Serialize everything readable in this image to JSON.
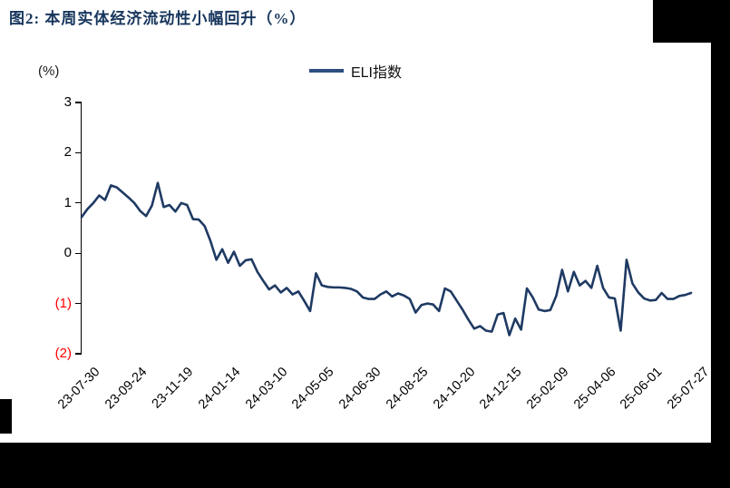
{
  "title": "图2:  本周实体经济流动性小幅回升（%）",
  "legend": {
    "series_label": "ELI指数"
  },
  "y_axis": {
    "unit": "(%)",
    "ticks": [
      {
        "label": "3",
        "color": "#000000"
      },
      {
        "label": "2",
        "color": "#000000"
      },
      {
        "label": "1",
        "color": "#000000"
      },
      {
        "label": "0",
        "color": "#000000"
      },
      {
        "label": "(1)",
        "color": "#FF0000"
      },
      {
        "label": "(2)",
        "color": "#FF0000"
      }
    ]
  },
  "x_axis": {
    "labels": [
      "23-07-30",
      "23-09-24",
      "23-11-19",
      "24-01-14",
      "24-03-10",
      "24-05-05",
      "24-06-30",
      "24-08-25",
      "24-10-20",
      "24-12-15",
      "25-02-09",
      "25-04-06",
      "25-06-01",
      "25-07-27"
    ]
  },
  "colors": {
    "title": "#17365D",
    "line": "#1F3A63",
    "legend_line": "#2E4E80",
    "negative_tick": "#FF0000"
  },
  "chart_data": {
    "type": "line",
    "title": "图2: 本周实体经济流动性小幅回升（%）",
    "ylabel": "(%)",
    "ylim": [
      -2,
      3
    ],
    "y_tick_values": [
      3,
      2,
      1,
      0,
      -1,
      -2
    ],
    "grid": false,
    "legend_position": "top-center",
    "x_note": "weekly observations, 23-07-30 to 25-07-27 (105 points); axis labels every 8 weeks",
    "x_tick_labels": [
      "23-07-30",
      "23-09-24",
      "23-11-19",
      "24-01-14",
      "24-03-10",
      "24-05-05",
      "24-06-30",
      "24-08-25",
      "24-10-20",
      "24-12-15",
      "25-02-09",
      "25-04-06",
      "25-06-01",
      "25-07-27"
    ],
    "series": [
      {
        "name": "ELI指数",
        "values": [
          0.72,
          0.88,
          1.0,
          1.15,
          1.06,
          1.35,
          1.31,
          1.21,
          1.11,
          1.0,
          0.84,
          0.74,
          0.95,
          1.4,
          0.92,
          0.96,
          0.83,
          1.0,
          0.96,
          0.68,
          0.67,
          0.54,
          0.24,
          -0.13,
          0.08,
          -0.19,
          0.03,
          -0.25,
          -0.14,
          -0.12,
          -0.37,
          -0.55,
          -0.72,
          -0.64,
          -0.78,
          -0.69,
          -0.82,
          -0.76,
          -0.95,
          -1.15,
          -0.4,
          -0.64,
          -0.67,
          -0.68,
          -0.68,
          -0.69,
          -0.71,
          -0.76,
          -0.88,
          -0.91,
          -0.91,
          -0.82,
          -0.76,
          -0.86,
          -0.8,
          -0.84,
          -0.91,
          -1.18,
          -1.03,
          -1.0,
          -1.02,
          -1.15,
          -0.7,
          -0.76,
          -0.94,
          -1.12,
          -1.32,
          -1.5,
          -1.45,
          -1.54,
          -1.56,
          -1.22,
          -1.19,
          -1.63,
          -1.3,
          -1.52,
          -0.7,
          -0.88,
          -1.12,
          -1.15,
          -1.13,
          -0.85,
          -0.33,
          -0.76,
          -0.37,
          -0.64,
          -0.55,
          -0.69,
          -0.25,
          -0.69,
          -0.88,
          -0.9,
          -1.54,
          -0.13,
          -0.6,
          -0.78,
          -0.9,
          -0.94,
          -0.93,
          -0.79,
          -0.91,
          -0.91,
          -0.85,
          -0.83,
          -0.79
        ]
      }
    ]
  }
}
